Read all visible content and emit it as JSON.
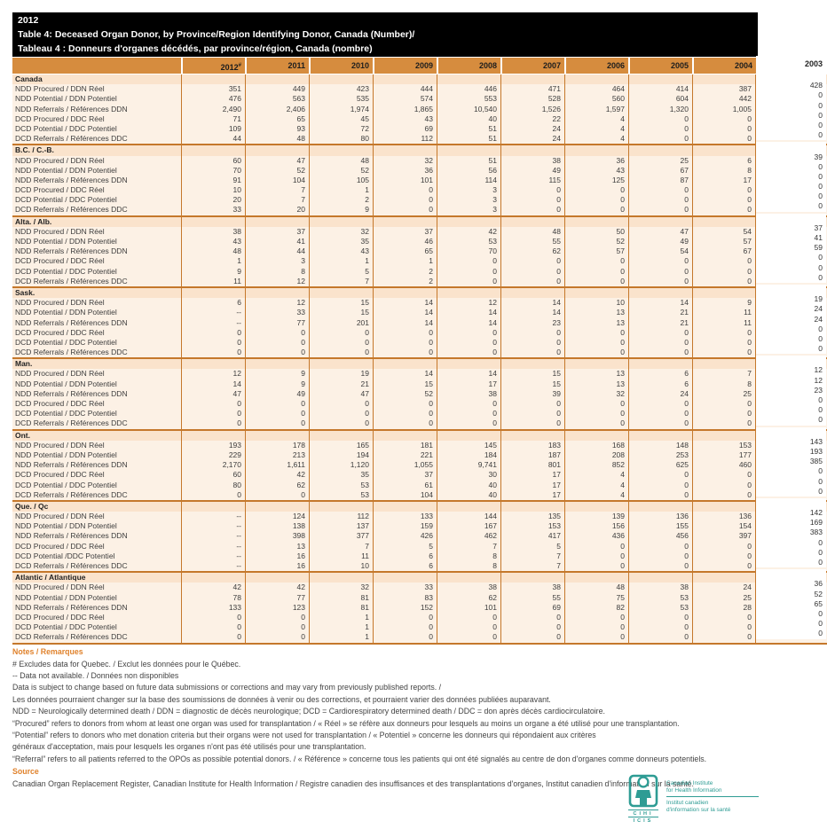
{
  "title": {
    "year": "2012",
    "line_en": "Table 4: Deceased Organ Donor, by Province/Region Identifying Donor, Canada (Number)/",
    "line_fr": "Tableau 4 : Donneurs d'organes décédés, par province/région, Canada (nombre)"
  },
  "table": {
    "years": [
      "2012",
      "2011",
      "2010",
      "2009",
      "2008",
      "2007",
      "2006",
      "2005",
      "2004",
      "2003"
    ],
    "first_year_superscript": "#",
    "regions": [
      {
        "name": "Canada",
        "rows": [
          {
            "label": "NDD Procured / DDN Réel",
            "values": [
              "351",
              "449",
              "423",
              "444",
              "446",
              "471",
              "464",
              "414",
              "387",
              "428"
            ]
          },
          {
            "label": "NDD Potential / DDN Potentiel",
            "values": [
              "476",
              "563",
              "535",
              "574",
              "553",
              "528",
              "560",
              "604",
              "442",
              "0"
            ]
          },
          {
            "label": "NDD Referrals / Références DDN",
            "values": [
              "2,490",
              "2,406",
              "1,974",
              "1,865",
              "10,540",
              "1,526",
              "1,597",
              "1,320",
              "1,005",
              "0"
            ]
          },
          {
            "label": "DCD Procured / DDC Réel",
            "values": [
              "71",
              "65",
              "45",
              "43",
              "40",
              "22",
              "4",
              "0",
              "0",
              "0"
            ]
          },
          {
            "label": "DCD Potential / DDC Potentiel",
            "values": [
              "109",
              "93",
              "72",
              "69",
              "51",
              "24",
              "4",
              "0",
              "0",
              "0"
            ]
          },
          {
            "label": "DCD Referrals / Références DDC",
            "values": [
              "44",
              "48",
              "80",
              "112",
              "51",
              "24",
              "4",
              "0",
              "0",
              "0"
            ]
          }
        ]
      },
      {
        "name": "B.C. / C.-B.",
        "rows": [
          {
            "label": "NDD Procured / DDN Réel",
            "values": [
              "60",
              "47",
              "48",
              "32",
              "51",
              "38",
              "36",
              "25",
              "6",
              "39"
            ]
          },
          {
            "label": "NDD Potential / DDN Potentiel",
            "values": [
              "70",
              "52",
              "52",
              "36",
              "56",
              "49",
              "43",
              "67",
              "8",
              "0"
            ]
          },
          {
            "label": "NDD Referrals / Références DDN",
            "values": [
              "91",
              "104",
              "105",
              "101",
              "114",
              "115",
              "125",
              "87",
              "17",
              "0"
            ]
          },
          {
            "label": "DCD Procured / DDC Réel",
            "values": [
              "10",
              "7",
              "1",
              "0",
              "3",
              "0",
              "0",
              "0",
              "0",
              "0"
            ]
          },
          {
            "label": "DCD Potential / DDC Potentiel",
            "values": [
              "20",
              "7",
              "2",
              "0",
              "3",
              "0",
              "0",
              "0",
              "0",
              "0"
            ]
          },
          {
            "label": "DCD Referrals / Références DDC",
            "values": [
              "33",
              "20",
              "9",
              "0",
              "3",
              "0",
              "0",
              "0",
              "0",
              "0"
            ]
          }
        ]
      },
      {
        "name": "Alta. / Alb.",
        "rows": [
          {
            "label": "NDD Procured / DDN Réel",
            "values": [
              "38",
              "37",
              "32",
              "37",
              "42",
              "48",
              "50",
              "47",
              "54",
              "37"
            ]
          },
          {
            "label": "NDD Potential / DDN Potentiel",
            "values": [
              "43",
              "41",
              "35",
              "46",
              "53",
              "55",
              "52",
              "49",
              "57",
              "41"
            ]
          },
          {
            "label": "NDD Referrals / Références DDN",
            "values": [
              "48",
              "44",
              "43",
              "65",
              "70",
              "62",
              "57",
              "54",
              "67",
              "59"
            ]
          },
          {
            "label": "DCD Procured / DDC Réel",
            "values": [
              "1",
              "3",
              "1",
              "1",
              "0",
              "0",
              "0",
              "0",
              "0",
              "0"
            ]
          },
          {
            "label": "DCD Potential / DDC Potentiel",
            "values": [
              "9",
              "8",
              "5",
              "2",
              "0",
              "0",
              "0",
              "0",
              "0",
              "0"
            ]
          },
          {
            "label": "DCD Referrals / Références DDC",
            "values": [
              "11",
              "12",
              "7",
              "2",
              "0",
              "0",
              "0",
              "0",
              "0",
              "0"
            ]
          }
        ]
      },
      {
        "name": "Sask.",
        "rows": [
          {
            "label": "NDD Procured / DDN Réel",
            "values": [
              "6",
              "12",
              "15",
              "14",
              "12",
              "14",
              "10",
              "14",
              "9",
              "19"
            ]
          },
          {
            "label": "NDD Potential / DDN Potentiel",
            "values": [
              "--",
              "33",
              "15",
              "14",
              "14",
              "14",
              "13",
              "21",
              "11",
              "24"
            ]
          },
          {
            "label": "NDD Referrals / Références DDN",
            "values": [
              "--",
              "77",
              "201",
              "14",
              "14",
              "23",
              "13",
              "21",
              "11",
              "24"
            ]
          },
          {
            "label": "DCD Procured / DDC Réel",
            "values": [
              "0",
              "0",
              "0",
              "0",
              "0",
              "0",
              "0",
              "0",
              "0",
              "0"
            ]
          },
          {
            "label": "DCD Potential / DDC Potentiel",
            "values": [
              "0",
              "0",
              "0",
              "0",
              "0",
              "0",
              "0",
              "0",
              "0",
              "0"
            ]
          },
          {
            "label": "DCD Referrals / Références DDC",
            "values": [
              "0",
              "0",
              "0",
              "0",
              "0",
              "0",
              "0",
              "0",
              "0",
              "0"
            ]
          }
        ]
      },
      {
        "name": "Man.",
        "rows": [
          {
            "label": "NDD Procured / DDN Réel",
            "values": [
              "12",
              "9",
              "19",
              "14",
              "14",
              "15",
              "13",
              "6",
              "7",
              "12"
            ]
          },
          {
            "label": "NDD Potential / DDN Potentiel",
            "values": [
              "14",
              "9",
              "21",
              "15",
              "17",
              "15",
              "13",
              "6",
              "8",
              "12"
            ]
          },
          {
            "label": "NDD Referrals / Références DDN",
            "values": [
              "47",
              "49",
              "47",
              "52",
              "38",
              "39",
              "32",
              "24",
              "25",
              "23"
            ]
          },
          {
            "label": "DCD Procured / DDC Réel",
            "values": [
              "0",
              "0",
              "0",
              "0",
              "0",
              "0",
              "0",
              "0",
              "0",
              "0"
            ]
          },
          {
            "label": "DCD Potential / DDC Potentiel",
            "values": [
              "0",
              "0",
              "0",
              "0",
              "0",
              "0",
              "0",
              "0",
              "0",
              "0"
            ]
          },
          {
            "label": "DCD Referrals / Références DDC",
            "values": [
              "0",
              "0",
              "0",
              "0",
              "0",
              "0",
              "0",
              "0",
              "0",
              "0"
            ]
          }
        ]
      },
      {
        "name": "Ont.",
        "rows": [
          {
            "label": "NDD Procured / DDN Réel",
            "values": [
              "193",
              "178",
              "165",
              "181",
              "145",
              "183",
              "168",
              "148",
              "153",
              "143"
            ]
          },
          {
            "label": "NDD Potential / DDN Potentiel",
            "values": [
              "229",
              "213",
              "194",
              "221",
              "184",
              "187",
              "208",
              "253",
              "177",
              "193"
            ]
          },
          {
            "label": "NDD Referrals / Références DDN",
            "values": [
              "2,170",
              "1,611",
              "1,120",
              "1,055",
              "9,741",
              "801",
              "852",
              "625",
              "460",
              "385"
            ]
          },
          {
            "label": "DCD Procured / DDC Réel",
            "values": [
              "60",
              "42",
              "35",
              "37",
              "30",
              "17",
              "4",
              "0",
              "0",
              "0"
            ]
          },
          {
            "label": "DCD Potential / DDC Potentiel",
            "values": [
              "80",
              "62",
              "53",
              "61",
              "40",
              "17",
              "4",
              "0",
              "0",
              "0"
            ]
          },
          {
            "label": "DCD Referrals / Références DDC",
            "values": [
              "0",
              "0",
              "53",
              "104",
              "40",
              "17",
              "4",
              "0",
              "0",
              "0"
            ]
          }
        ]
      },
      {
        "name": "Que. / Qc",
        "rows": [
          {
            "label": "NDD Procured / DDN Réel",
            "values": [
              "--",
              "124",
              "112",
              "133",
              "144",
              "135",
              "139",
              "136",
              "136",
              "142"
            ]
          },
          {
            "label": "NDD Potential / DDN Potentiel",
            "values": [
              "--",
              "138",
              "137",
              "159",
              "167",
              "153",
              "156",
              "155",
              "154",
              "169"
            ]
          },
          {
            "label": "NDD Referrals / Références DDN",
            "values": [
              "--",
              "398",
              "377",
              "426",
              "462",
              "417",
              "436",
              "456",
              "397",
              "383"
            ]
          },
          {
            "label": "DCD Procured / DDC Réel",
            "values": [
              "--",
              "13",
              "7",
              "5",
              "7",
              "5",
              "0",
              "0",
              "0",
              "0"
            ]
          },
          {
            "label": "DCD Potential /DDC Potentiel",
            "values": [
              "--",
              "16",
              "11",
              "6",
              "8",
              "7",
              "0",
              "0",
              "0",
              "0"
            ]
          },
          {
            "label": "DCD Referrals / Références DDC",
            "values": [
              "--",
              "16",
              "10",
              "6",
              "8",
              "7",
              "0",
              "0",
              "0",
              "0"
            ]
          }
        ]
      },
      {
        "name": "Atlantic / Atlantique",
        "rows": [
          {
            "label": "NDD Procured / DDN Réel",
            "values": [
              "42",
              "42",
              "32",
              "33",
              "38",
              "38",
              "48",
              "38",
              "24",
              "36"
            ]
          },
          {
            "label": "NDD Potential / DDN Potentiel",
            "values": [
              "78",
              "77",
              "81",
              "83",
              "62",
              "55",
              "75",
              "53",
              "25",
              "52"
            ]
          },
          {
            "label": "NDD Referrals / Références DDN",
            "values": [
              "133",
              "123",
              "81",
              "152",
              "101",
              "69",
              "82",
              "53",
              "28",
              "65"
            ]
          },
          {
            "label": "DCD Procured / DDC Réel",
            "values": [
              "0",
              "0",
              "1",
              "0",
              "0",
              "0",
              "0",
              "0",
              "0",
              "0"
            ]
          },
          {
            "label": "DCD Potential / DDC Potentiel",
            "values": [
              "0",
              "0",
              "1",
              "0",
              "0",
              "0",
              "0",
              "0",
              "0",
              "0"
            ]
          },
          {
            "label": "DCD Referrals / Références DDC",
            "values": [
              "0",
              "0",
              "1",
              "0",
              "0",
              "0",
              "0",
              "0",
              "0",
              "0"
            ]
          }
        ]
      }
    ]
  },
  "notes": {
    "heading": "Notes / Remarques",
    "lines": [
      "# Excludes data for Quebec. / Exclut les données pour le Québec.",
      "-- Data not available. / Données non disponibles",
      "Data is subject to change based on future data submissions or corrections and may vary from previously published reports. /",
      "Les données pourraient changer sur la base des soumissions de données à venir ou des corrections, et pourraient varier des données publiées auparavant.",
      "NDD = Neurologically determined death / DDN = diagnostic de décès neurologique; DCD = Cardiorespiratory determined death / DDC = don après décès cardiocirculatoire.",
      "“Procured” refers to donors from whom at least one organ was used for transplantation / « Réel » se réfère aux donneurs pour lesquels au moins un organe a été utilisé pour une transplantation.",
      "“Potential” refers to donors who met donation criteria but their organs were not used for transplantation / « Potentiel » concerne les donneurs qui répondaient aux critères",
      "généraux d'acceptation, mais pour lesquels les organes n'ont pas été utilisés pour une transplantation.",
      "“Referral” refers to all patients referred to the OPOs as possible potential donors. / « Référence » concerne tous les patients qui ont été signalés au centre de don d'organes comme donneurs potentiels."
    ]
  },
  "source": {
    "heading": "Source",
    "text": "Canadian Organ Replacement Register, Canadian Institute for Health Information / Registre canadien des insuffisances et des transplantations d'organes, Institut canadien d'information sur la santé."
  },
  "logo": {
    "acronym_en": "CIHI",
    "acronym_fr": "ICIS",
    "en_line1": "Canadian Institute",
    "en_line2": "for Health Information",
    "fr_line1": "Institut canadien",
    "fr_line2": "d'information sur la santé",
    "teal": "#2E9C94"
  },
  "colors": {
    "header_orange": "#D68C3E",
    "border_orange": "#C5782B",
    "region_row_bg": "#FAE3CC",
    "data_row_bg": "#FCF1E5"
  }
}
